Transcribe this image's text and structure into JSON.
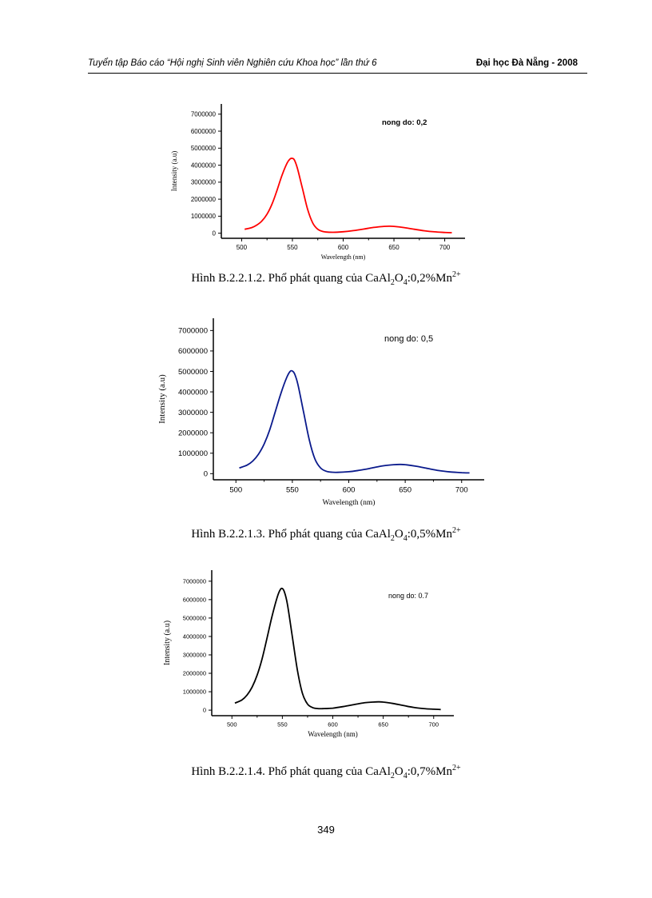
{
  "header": {
    "left": "Tuyển tập Báo cáo “Hội nghị Sinh viên Nghiên cứu Khoa học” lần thứ 6",
    "right": "Đại học Đà Nẵng - 2008"
  },
  "chart_data": [
    {
      "type": "line",
      "legend_text": "nong do: 0,2",
      "xlabel": "Wavelength (nm)",
      "ylabel": "Intensity (a.u)",
      "xlim": [
        480,
        720
      ],
      "ylim": [
        -300000,
        7600000
      ],
      "xticks": [
        500,
        550,
        600,
        650,
        700
      ],
      "yticks": [
        0,
        1000000,
        2000000,
        3000000,
        4000000,
        5000000,
        6000000,
        7000000
      ],
      "ytick_labels": [
        "0",
        "1000000",
        "2000000",
        "3000000",
        "4000000",
        "5000000",
        "6000000",
        "7000000"
      ],
      "color": "#ff0000",
      "x": [
        503,
        510,
        515,
        520,
        525,
        530,
        535,
        540,
        545,
        548,
        550,
        552,
        555,
        560,
        565,
        570,
        575,
        580,
        585,
        590,
        600,
        610,
        620,
        630,
        640,
        645,
        650,
        660,
        670,
        680,
        690,
        700,
        707
      ],
      "y": [
        230000,
        330000,
        480000,
        720000,
        1120000,
        1720000,
        2550000,
        3450000,
        4150000,
        4380000,
        4400000,
        4300000,
        3800000,
        2600000,
        1400000,
        600000,
        230000,
        100000,
        60000,
        55000,
        85000,
        150000,
        240000,
        340000,
        400000,
        410000,
        400000,
        330000,
        230000,
        140000,
        80000,
        45000,
        30000
      ]
    },
    {
      "type": "line",
      "legend_text": "nong do: 0,5",
      "xlabel": "Wavelength (nm)",
      "ylabel": "Intensity (a.u)",
      "xlim": [
        480,
        720
      ],
      "ylim": [
        -300000,
        7600000
      ],
      "xticks": [
        500,
        550,
        600,
        650,
        700
      ],
      "yticks": [
        0,
        1000000,
        2000000,
        3000000,
        4000000,
        5000000,
        6000000,
        7000000
      ],
      "ytick_labels": [
        "0",
        "1000000",
        "2000000",
        "3000000",
        "4000000",
        "5000000",
        "6000000",
        "7000000"
      ],
      "color": "#0a1a8c",
      "x": [
        503,
        510,
        515,
        520,
        525,
        530,
        535,
        540,
        545,
        548,
        550,
        552,
        555,
        560,
        565,
        570,
        575,
        580,
        585,
        590,
        600,
        610,
        620,
        630,
        640,
        645,
        650,
        660,
        670,
        680,
        690,
        700,
        707
      ],
      "y": [
        280000,
        420000,
        620000,
        950000,
        1450000,
        2150000,
        3050000,
        3950000,
        4700000,
        5000000,
        5020000,
        4880000,
        4350000,
        3000000,
        1650000,
        720000,
        280000,
        120000,
        70000,
        65000,
        95000,
        170000,
        270000,
        380000,
        440000,
        450000,
        440000,
        360000,
        250000,
        150000,
        85000,
        50000,
        35000
      ]
    },
    {
      "type": "line",
      "legend_text": "nong do: 0.7",
      "xlabel": "Wavelength (nm)",
      "ylabel": "Intensity (a.u)",
      "xlim": [
        480,
        720
      ],
      "ylim": [
        -300000,
        7600000
      ],
      "xticks": [
        500,
        550,
        600,
        650,
        700
      ],
      "yticks": [
        0,
        1000000,
        2000000,
        3000000,
        4000000,
        5000000,
        6000000,
        7000000
      ],
      "ytick_labels": [
        "0",
        "1000000",
        "2000000",
        "3000000",
        "4000000",
        "5000000",
        "6000000",
        "7000000"
      ],
      "color": "#000000",
      "x": [
        503,
        510,
        515,
        520,
        525,
        530,
        535,
        540,
        545,
        548,
        550,
        552,
        555,
        560,
        565,
        570,
        575,
        580,
        585,
        590,
        600,
        610,
        620,
        630,
        640,
        645,
        650,
        660,
        670,
        680,
        690,
        700,
        707
      ],
      "y": [
        380000,
        560000,
        820000,
        1250000,
        1900000,
        2800000,
        3950000,
        5150000,
        6150000,
        6550000,
        6600000,
        6420000,
        5750000,
        3950000,
        2150000,
        900000,
        330000,
        140000,
        85000,
        80000,
        110000,
        190000,
        290000,
        390000,
        440000,
        450000,
        440000,
        360000,
        250000,
        150000,
        85000,
        50000,
        35000
      ]
    }
  ],
  "captions": [
    {
      "prefix": "Hình B.2.2.1.2. Phổ phát quang của CaAl",
      "s1": "2",
      "mid": "O",
      "s2": "4",
      "suffix": ":0,2%Mn",
      "sup": "2+"
    },
    {
      "prefix": "Hình B.2.2.1.3. Phổ phát quang của CaAl",
      "s1": "2",
      "mid": "O",
      "s2": "4",
      "suffix": ":0,5%Mn",
      "sup": "2+"
    },
    {
      "prefix": "Hình B.2.2.1.4.  Phổ phát quang của CaAl",
      "s1": "2",
      "mid": "O",
      "s2": "4",
      "suffix": ":0,7%Mn",
      "sup": "2+"
    }
  ],
  "page_number": "349"
}
